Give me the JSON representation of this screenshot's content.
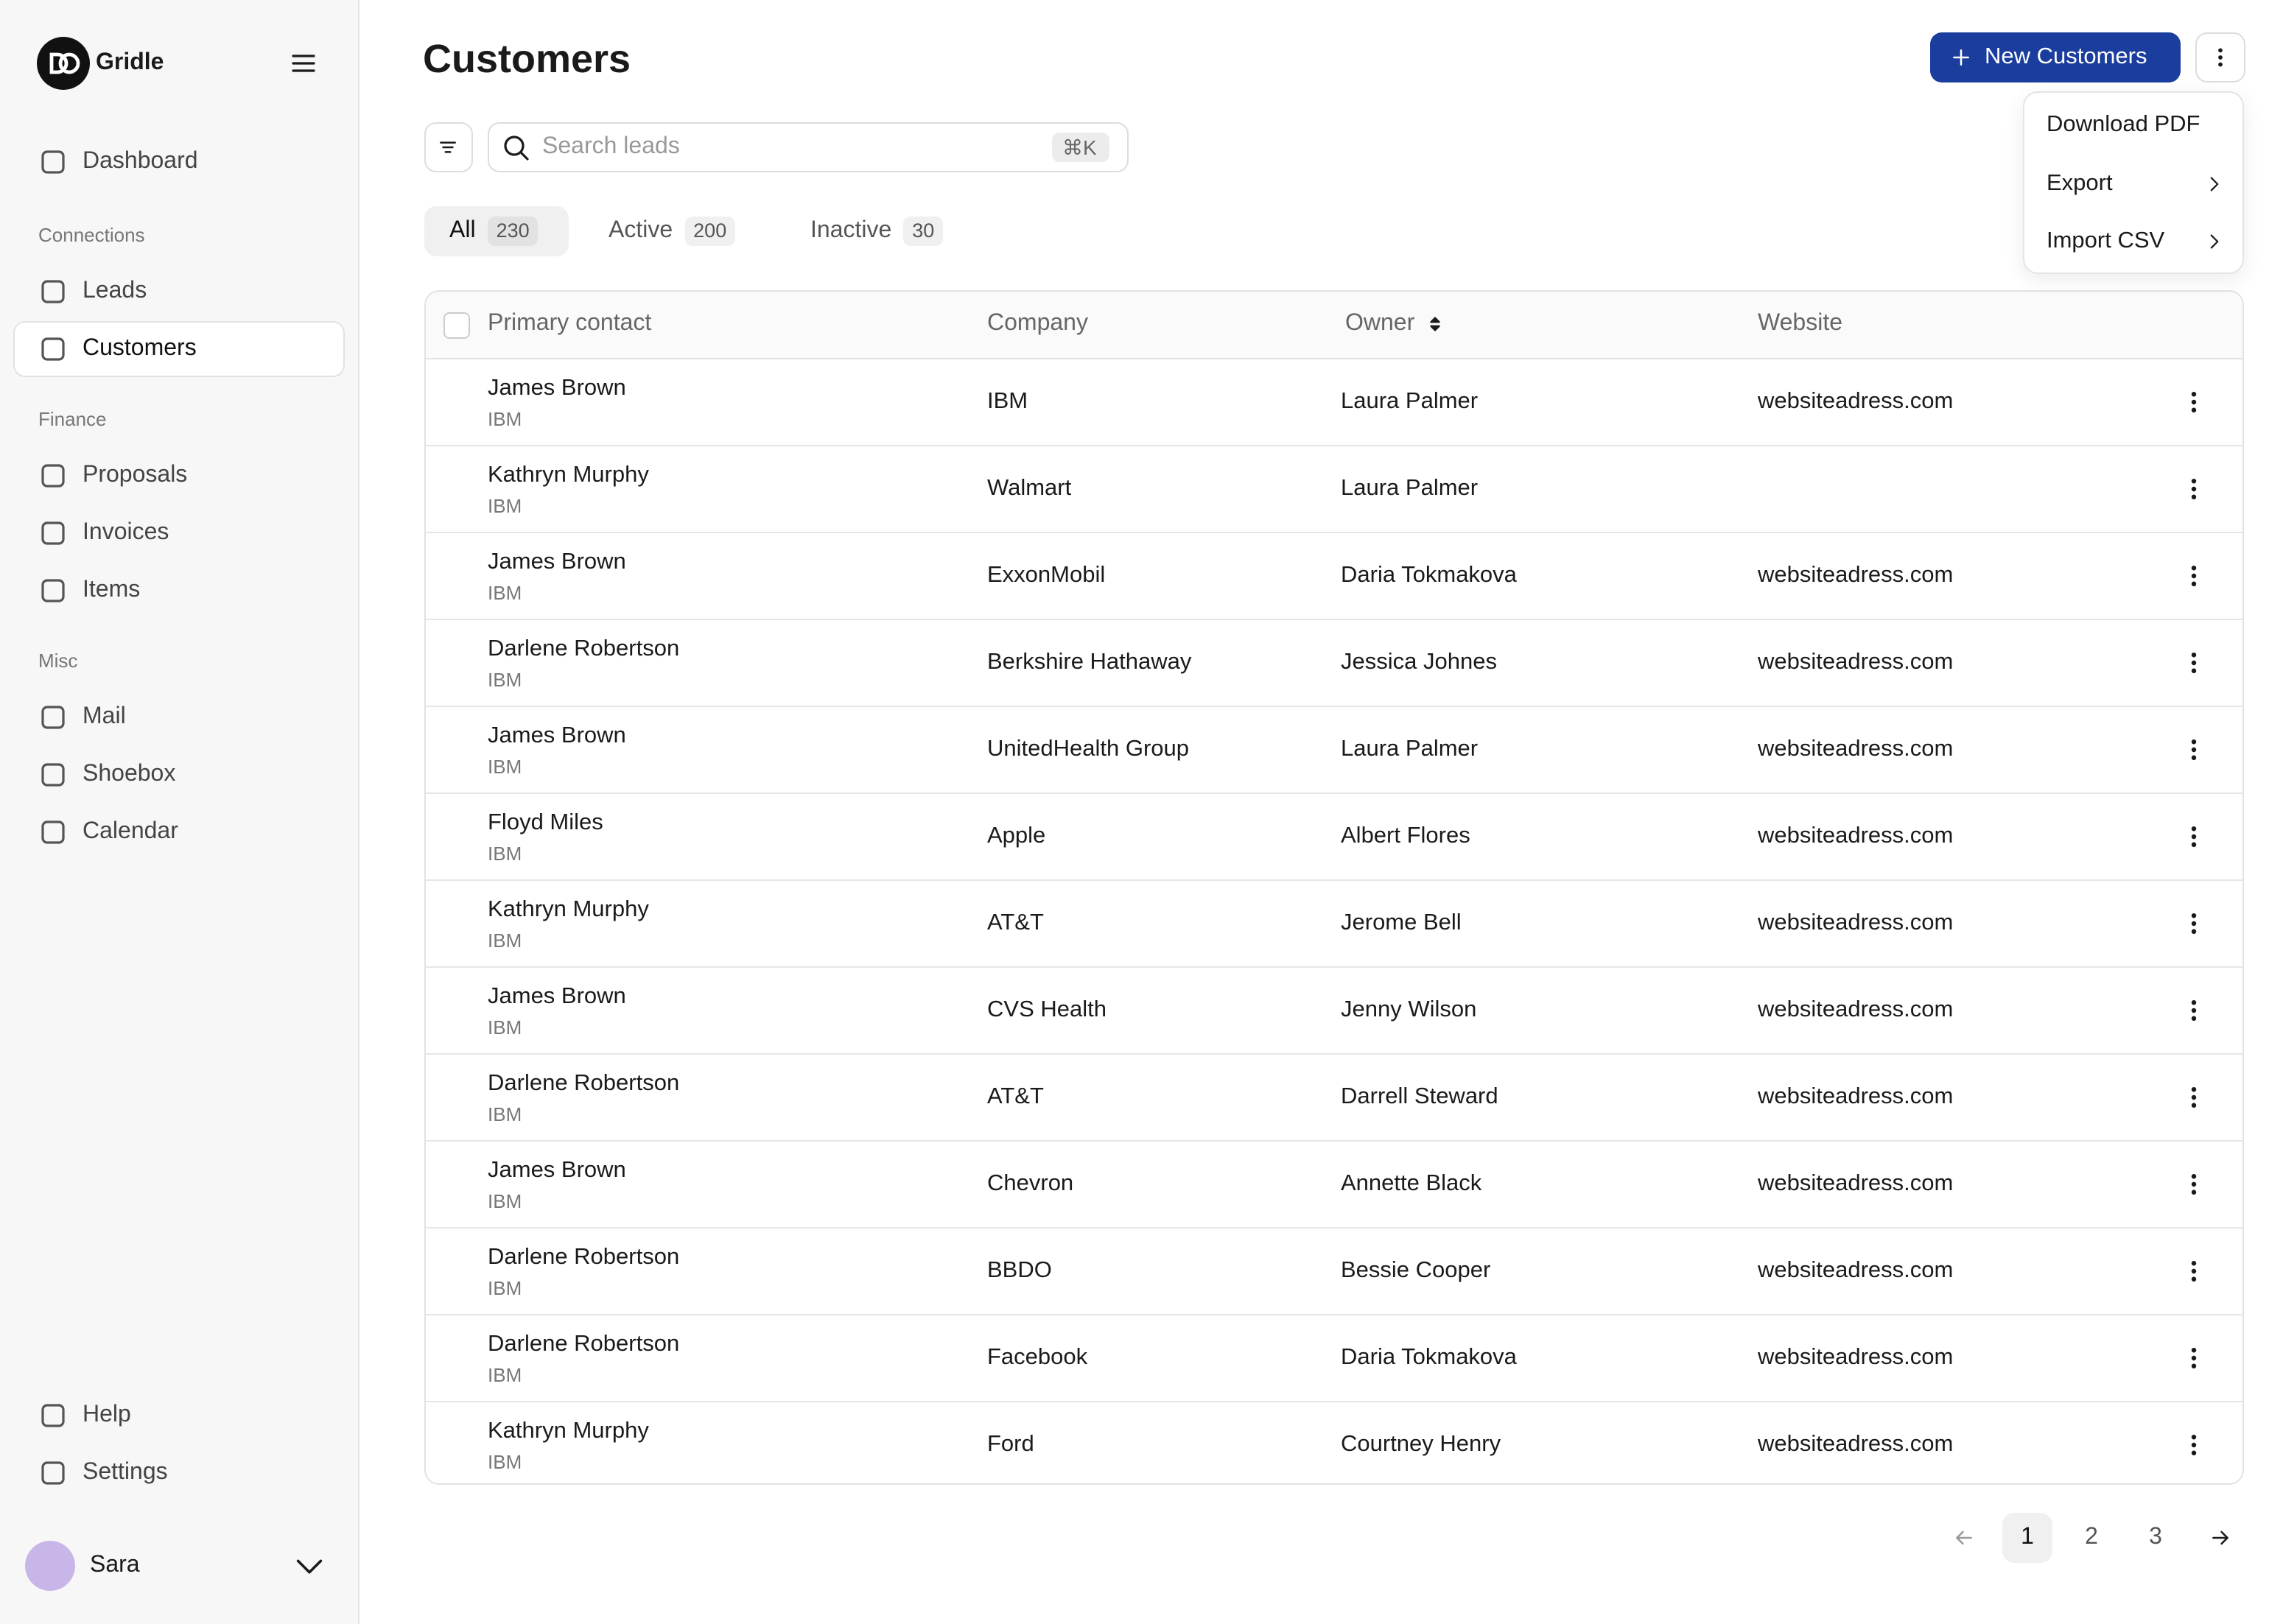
{
  "sidebar": {
    "brand": "Gridle",
    "items": [
      {
        "label": "Dashboard"
      }
    ],
    "sections": [
      {
        "title": "Connections",
        "items": [
          {
            "label": "Leads"
          },
          {
            "label": "Customers",
            "active": true
          }
        ]
      },
      {
        "title": "Finance",
        "items": [
          {
            "label": "Proposals"
          },
          {
            "label": "Invoices"
          },
          {
            "label": "Items"
          }
        ]
      },
      {
        "title": "Misc",
        "items": [
          {
            "label": "Mail"
          },
          {
            "label": "Shoebox"
          },
          {
            "label": "Calendar"
          }
        ]
      }
    ],
    "footer_items": [
      {
        "label": "Help"
      },
      {
        "label": "Settings"
      }
    ],
    "user": "Sara"
  },
  "header": {
    "title": "Customers",
    "primary_button": "New Customers"
  },
  "menu": {
    "items": [
      {
        "label": "Download PDF",
        "submenu": false
      },
      {
        "label": "Export",
        "submenu": true
      },
      {
        "label": "Import CSV",
        "submenu": true
      }
    ]
  },
  "search": {
    "placeholder": "Search leads",
    "shortcut": "⌘K"
  },
  "tabs": [
    {
      "label": "All",
      "count": 230,
      "active": true
    },
    {
      "label": "Active",
      "count": 200
    },
    {
      "label": "Inactive",
      "count": 30
    }
  ],
  "table": {
    "columns": [
      "Primary contact",
      "Company",
      "Owner",
      "Website"
    ],
    "rows": [
      {
        "contact": "James Brown",
        "contact_company": "IBM",
        "company": "IBM",
        "owner": "Laura Palmer",
        "website": "websiteadress.com"
      },
      {
        "contact": "Kathryn Murphy",
        "contact_company": "IBM",
        "company": "Walmart",
        "owner": "Laura Palmer",
        "website": null
      },
      {
        "contact": "James Brown",
        "contact_company": "IBM",
        "company": "ExxonMobil",
        "owner": "Daria Tokmakova",
        "website": "websiteadress.com"
      },
      {
        "contact": "Darlene Robertson",
        "contact_company": "IBM",
        "company": "Berkshire Hathaway",
        "owner": "Jessica Johnes",
        "website": "websiteadress.com"
      },
      {
        "contact": "James Brown",
        "contact_company": "IBM",
        "company": "UnitedHealth Group",
        "owner": "Laura Palmer",
        "website": "websiteadress.com"
      },
      {
        "contact": "Floyd Miles",
        "contact_company": "IBM",
        "company": "Apple",
        "owner": "Albert Flores",
        "website": "websiteadress.com"
      },
      {
        "contact": "Kathryn Murphy",
        "contact_company": "IBM",
        "company": "AT&T",
        "owner": "Jerome Bell",
        "website": "websiteadress.com"
      },
      {
        "contact": "James Brown",
        "contact_company": "IBM",
        "company": "CVS Health",
        "owner": "Jenny Wilson",
        "website": "websiteadress.com"
      },
      {
        "contact": "Darlene Robertson",
        "contact_company": "IBM",
        "company": "AT&T",
        "owner": "Darrell Steward",
        "website": "websiteadress.com"
      },
      {
        "contact": "James Brown",
        "contact_company": "IBM",
        "company": "Chevron",
        "owner": "Annette Black",
        "website": "websiteadress.com"
      },
      {
        "contact": "Darlene Robertson",
        "contact_company": "IBM",
        "company": "BBDO",
        "owner": "Bessie Cooper",
        "website": "websiteadress.com"
      },
      {
        "contact": "Darlene Robertson",
        "contact_company": "IBM",
        "company": "Facebook",
        "owner": "Daria Tokmakova",
        "website": "websiteadress.com"
      },
      {
        "contact": "Kathryn Murphy",
        "contact_company": "IBM",
        "company": "Ford",
        "owner": "Courtney Henry",
        "website": "websiteadress.com"
      }
    ]
  },
  "pagination": {
    "pages": [
      1,
      2,
      3
    ],
    "current": 1
  }
}
